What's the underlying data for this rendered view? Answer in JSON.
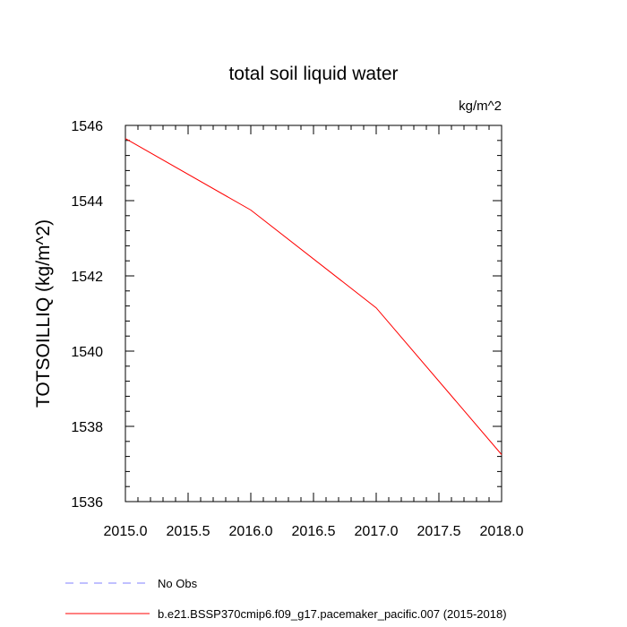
{
  "chart_data": {
    "type": "line",
    "title": "total soil liquid water",
    "units": "kg/m^2",
    "ylabel": "TOTSOILLIQ  (kg/m^2)",
    "xlabel": "",
    "xlim": [
      2015.0,
      2018.0
    ],
    "ylim": [
      1536,
      1546
    ],
    "x_ticks": [
      2015.0,
      2015.5,
      2016.0,
      2016.5,
      2017.0,
      2017.5,
      2018.0
    ],
    "x_tick_labels": [
      "2015.0",
      "2015.5",
      "2016.0",
      "2016.5",
      "2017.0",
      "2017.5",
      "2018.0"
    ],
    "y_ticks": [
      1536,
      1538,
      1540,
      1542,
      1544,
      1546
    ],
    "y_tick_labels": [
      "1536",
      "1538",
      "1540",
      "1542",
      "1544",
      "1546"
    ],
    "grid": false,
    "series": [
      {
        "name": "b.e21.BSSP370cmip6.f09_g17.pacemaker_pacific.007 (2015-2018)",
        "color": "#ff0000",
        "style": "solid",
        "x": [
          2015.0,
          2016.0,
          2017.0,
          2018.0
        ],
        "values": [
          1545.65,
          1543.75,
          1541.15,
          1537.25
        ]
      }
    ],
    "legend": [
      {
        "label": "No Obs",
        "color": "#8080ff",
        "style": "dashed"
      },
      {
        "label": "b.e21.BSSP370cmip6.f09_g17.pacemaker_pacific.007 (2015-2018)",
        "color": "#ff0000",
        "style": "solid"
      }
    ],
    "legend_position": "bottom-left"
  }
}
